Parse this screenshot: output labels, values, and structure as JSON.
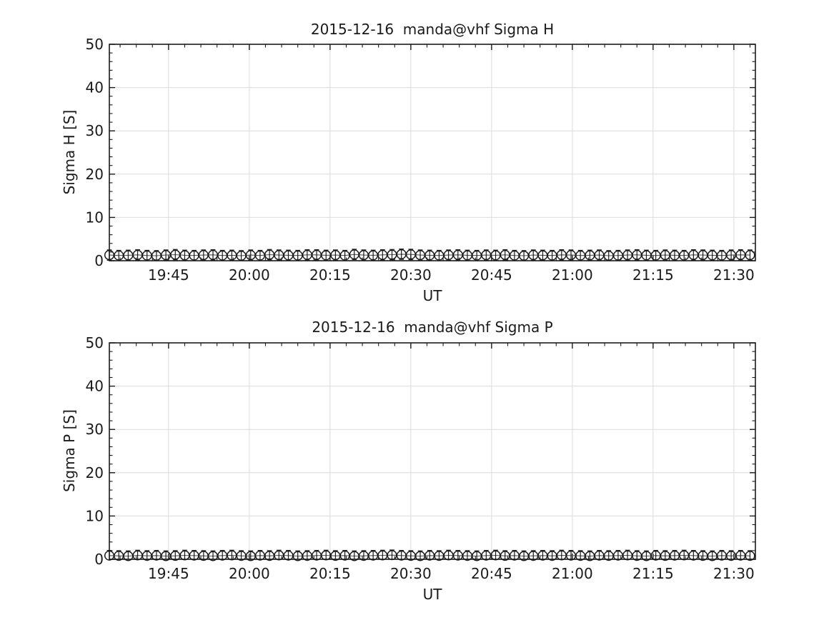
{
  "figure": {
    "background_color": "#ffffff",
    "axis_color": "#1a1a1a",
    "grid_color": "#dcdcdc",
    "marker_color": "#1a1a1a",
    "line_color": "#555555"
  },
  "chart_data": [
    {
      "type": "line",
      "subtype": "errorbar_open_circles",
      "title": "2015-12-16  manda@vhf Sigma H",
      "xlabel": "UT",
      "ylabel": "Sigma H [S]",
      "x_unit": "minutes_of_day_UT",
      "xlim": [
        1174,
        1294
      ],
      "xlim_ut": [
        "19:34",
        "21:34"
      ],
      "ylim": [
        0,
        50
      ],
      "x_major_ticks": [
        1185,
        1200,
        1215,
        1230,
        1245,
        1260,
        1275,
        1290
      ],
      "x_tick_labels": [
        "19:45",
        "20:00",
        "20:15",
        "20:30",
        "20:45",
        "21:00",
        "21:15",
        "21:30"
      ],
      "x_minor_step": 3,
      "y_major_ticks": [
        0,
        10,
        20,
        30,
        40,
        50
      ],
      "y_minor_step": 2,
      "grid": true,
      "legend": "none",
      "marker": "o",
      "yerr": 1.2,
      "x": [
        1174,
        1175.75,
        1177.5,
        1179.25,
        1181,
        1182.75,
        1184.5,
        1186.25,
        1188,
        1189.75,
        1191.5,
        1193.25,
        1195,
        1196.75,
        1198.5,
        1200.25,
        1202,
        1203.75,
        1205.5,
        1207.25,
        1209,
        1210.75,
        1212.5,
        1214.25,
        1216,
        1217.75,
        1219.5,
        1221.25,
        1223,
        1224.75,
        1226.5,
        1228.25,
        1230,
        1231.75,
        1233.5,
        1235.25,
        1237,
        1238.75,
        1240.5,
        1242.25,
        1244,
        1245.75,
        1247.5,
        1249.25,
        1251,
        1252.75,
        1254.5,
        1256.25,
        1258,
        1259.75,
        1261.5,
        1263.25,
        1265,
        1266.75,
        1268.5,
        1270.25,
        1272,
        1273.75,
        1275.5,
        1277.25,
        1279,
        1280.75,
        1282.5,
        1284.25,
        1286,
        1287.75,
        1289.5,
        1291.25,
        1293
      ],
      "y": [
        1.3,
        1.2,
        1.25,
        1.35,
        1.2,
        1.15,
        1.3,
        1.4,
        1.25,
        1.2,
        1.3,
        1.35,
        1.2,
        1.25,
        1.15,
        1.3,
        1.2,
        1.4,
        1.3,
        1.25,
        1.2,
        1.35,
        1.35,
        1.25,
        1.3,
        1.2,
        1.45,
        1.3,
        1.25,
        1.35,
        1.4,
        1.5,
        1.45,
        1.3,
        1.25,
        1.2,
        1.3,
        1.35,
        1.25,
        1.2,
        1.3,
        1.25,
        1.35,
        1.2,
        1.15,
        1.3,
        1.25,
        1.2,
        1.35,
        1.3,
        1.2,
        1.25,
        1.3,
        1.15,
        1.2,
        1.3,
        1.35,
        1.25,
        1.2,
        1.3,
        1.25,
        1.2,
        1.35,
        1.3,
        1.25,
        1.2,
        1.3,
        1.35,
        1.3
      ]
    },
    {
      "type": "line",
      "subtype": "errorbar_open_circles",
      "title": "2015-12-16  manda@vhf Sigma P",
      "xlabel": "UT",
      "ylabel": "Sigma P [S]",
      "x_unit": "minutes_of_day_UT",
      "xlim": [
        1174,
        1294
      ],
      "xlim_ut": [
        "19:34",
        "21:34"
      ],
      "ylim": [
        0,
        50
      ],
      "x_major_ticks": [
        1185,
        1200,
        1215,
        1230,
        1245,
        1260,
        1275,
        1290
      ],
      "x_tick_labels": [
        "19:45",
        "20:00",
        "20:15",
        "20:30",
        "20:45",
        "21:00",
        "21:15",
        "21:30"
      ],
      "x_minor_step": 3,
      "y_major_ticks": [
        0,
        10,
        20,
        30,
        40,
        50
      ],
      "y_minor_step": 2,
      "grid": true,
      "legend": "none",
      "marker": "o",
      "yerr": 1.2,
      "x": [
        1174,
        1175.75,
        1177.5,
        1179.25,
        1181,
        1182.75,
        1184.5,
        1186.25,
        1188,
        1189.75,
        1191.5,
        1193.25,
        1195,
        1196.75,
        1198.5,
        1200.25,
        1202,
        1203.75,
        1205.5,
        1207.25,
        1209,
        1210.75,
        1212.5,
        1214.25,
        1216,
        1217.75,
        1219.5,
        1221.25,
        1223,
        1224.75,
        1226.5,
        1228.25,
        1230,
        1231.75,
        1233.5,
        1235.25,
        1237,
        1238.75,
        1240.5,
        1242.25,
        1244,
        1245.75,
        1247.5,
        1249.25,
        1251,
        1252.75,
        1254.5,
        1256.25,
        1258,
        1259.75,
        1261.5,
        1263.25,
        1265,
        1266.75,
        1268.5,
        1270.25,
        1272,
        1273.75,
        1275.5,
        1277.25,
        1279,
        1280.75,
        1282.5,
        1284.25,
        1286,
        1287.75,
        1289.5,
        1291.25,
        1293
      ],
      "y": [
        0.85,
        0.8,
        0.75,
        0.9,
        0.8,
        0.85,
        0.75,
        0.8,
        0.9,
        0.85,
        0.8,
        0.75,
        0.85,
        0.9,
        0.8,
        0.75,
        0.85,
        0.8,
        0.9,
        0.85,
        0.75,
        0.8,
        0.85,
        0.9,
        0.8,
        0.85,
        0.75,
        0.8,
        0.85,
        0.9,
        0.95,
        0.85,
        0.8,
        0.75,
        0.85,
        0.8,
        0.9,
        0.85,
        0.8,
        0.75,
        0.85,
        0.9,
        0.8,
        0.85,
        0.75,
        0.8,
        0.85,
        0.8,
        0.9,
        0.85,
        0.8,
        0.75,
        0.85,
        0.8,
        0.85,
        0.9,
        0.8,
        0.75,
        0.85,
        0.8,
        0.85,
        0.9,
        0.85,
        0.8,
        0.75,
        0.85,
        0.8,
        0.85,
        0.8
      ]
    }
  ]
}
